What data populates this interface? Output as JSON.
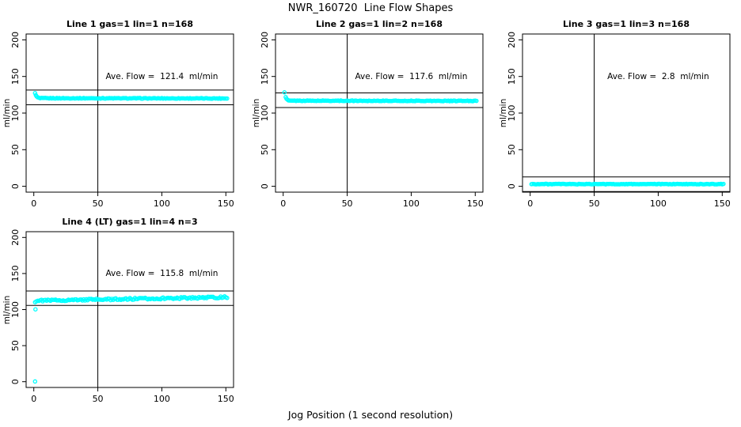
{
  "page": {
    "title": "NWR_160720  Line Flow Shapes",
    "xlabel": "Jog Position (1 second resolution)",
    "background_color": "#ffffff",
    "point_color": "#00ffff",
    "axis_color": "#000000"
  },
  "chart_data": [
    {
      "type": "scatter",
      "title": "Line 1 gas=1 lin=1 n=168",
      "annotation": "Ave. Flow =  121.4  ml/min",
      "ave_flow": 121.4,
      "units": "ml/min",
      "ylabel": "ml/min",
      "xlim": [
        -6,
        156
      ],
      "ylim": [
        -8,
        208
      ],
      "xticks": [
        0,
        50,
        100,
        150
      ],
      "yticks": [
        0,
        50,
        100,
        150,
        200
      ],
      "grid": false,
      "vline_x": 50,
      "hlines": [
        131.4,
        111.4
      ],
      "series": {
        "x_start": 1,
        "x_end": 151,
        "steady_from": 5,
        "steady_start": 120.3,
        "steady_end": 120.0,
        "noise": 0.45,
        "transient": [
          [
            1,
            127.3
          ],
          [
            1.6,
            124.5
          ],
          [
            2.2,
            122.8
          ],
          [
            3,
            121.6
          ],
          [
            4,
            120.9
          ]
        ],
        "outliers": []
      }
    },
    {
      "type": "scatter",
      "title": "Line 2 gas=1 lin=2 n=168",
      "annotation": "Ave. Flow =  117.6  ml/min",
      "ave_flow": 117.6,
      "units": "ml/min",
      "ylabel": "ml/min",
      "xlim": [
        -6,
        156
      ],
      "ylim": [
        -8,
        208
      ],
      "xticks": [
        0,
        50,
        100,
        150
      ],
      "yticks": [
        0,
        50,
        100,
        150,
        200
      ],
      "grid": false,
      "vline_x": 50,
      "hlines": [
        127.6,
        107.6
      ],
      "series": {
        "x_start": 1,
        "x_end": 151,
        "steady_from": 5,
        "steady_start": 116.9,
        "steady_end": 116.6,
        "noise": 0.45,
        "transient": [
          [
            1,
            128.3
          ],
          [
            2,
            121.8
          ],
          [
            2.6,
            119.6
          ],
          [
            3.4,
            118.2
          ],
          [
            4.2,
            117.3
          ]
        ],
        "outliers": []
      }
    },
    {
      "type": "scatter",
      "title": "Line 3 gas=1 lin=3 n=168",
      "annotation": "Ave. Flow =  2.8  ml/min",
      "ave_flow": 2.8,
      "units": "ml/min",
      "ylabel": "ml/min",
      "xlim": [
        -6,
        156
      ],
      "ylim": [
        -8,
        208
      ],
      "xticks": [
        0,
        50,
        100,
        150
      ],
      "yticks": [
        0,
        50,
        100,
        150,
        200
      ],
      "grid": false,
      "vline_x": 50,
      "hlines": [
        12.8,
        -7.2
      ],
      "series": {
        "x_start": 1,
        "x_end": 151,
        "steady_from": 1,
        "steady_start": 3.0,
        "steady_end": 3.0,
        "noise": 0.4,
        "transient": [],
        "outliers": []
      }
    },
    {
      "type": "scatter",
      "title": "Line 4 (LT) gas=1 lin=4 n=3",
      "annotation": "Ave. Flow =  115.8  ml/min",
      "ave_flow": 115.8,
      "units": "ml/min",
      "ylabel": "ml/min",
      "xlim": [
        -6,
        156
      ],
      "ylim": [
        -8,
        208
      ],
      "xticks": [
        0,
        50,
        100,
        150
      ],
      "yticks": [
        0,
        50,
        100,
        150,
        200
      ],
      "grid": false,
      "vline_x": 50,
      "hlines": [
        125.8,
        105.8
      ],
      "series": {
        "x_start": 1,
        "x_end": 151,
        "steady_from": 2,
        "steady_start": 112.4,
        "steady_end": 117.2,
        "noise": 1.25,
        "transient": [
          [
            1,
            110.2
          ]
        ],
        "outliers": [
          [
            1,
            0.3
          ],
          [
            1.3,
            100.3
          ]
        ]
      }
    }
  ]
}
